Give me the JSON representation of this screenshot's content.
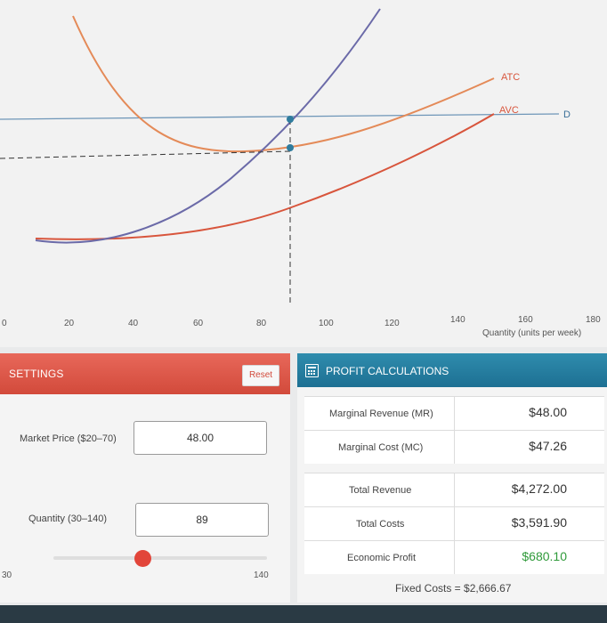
{
  "chart": {
    "x_ticks": [
      "0",
      "20",
      "40",
      "60",
      "80",
      "100",
      "120",
      "140",
      "160",
      "180"
    ],
    "x_axis_label": "Quantity (units per week)",
    "curves": {
      "mc": {
        "label": "",
        "color": "#6b6aa8"
      },
      "atc": {
        "label": "ATC",
        "color": "#e48a58"
      },
      "avc": {
        "label": "AVC",
        "color": "#d8553c"
      },
      "demand": {
        "label": "D",
        "color": "#6e96b8"
      }
    }
  },
  "settings": {
    "title": "SETTINGS",
    "reset_label": "Reset",
    "price_label": "Market Price ($20–70)",
    "price_value": "48.00",
    "quantity_label": "Quantity (30–140)",
    "quantity_value": "89",
    "slider_min_label": "30",
    "slider_max_label": "140",
    "slider_fraction": 0.53,
    "accent_color": "#e2453a"
  },
  "profit": {
    "title": "PROFIT CALCULATIONS",
    "header_color": "#1d7093",
    "marginal": [
      {
        "label": "Marginal Revenue (MR)",
        "value": "$48.00"
      },
      {
        "label": "Marginal Cost (MC)",
        "value": "$47.26"
      }
    ],
    "totals": [
      {
        "label": "Total Revenue",
        "value": "$4,272.00"
      },
      {
        "label": "Total Costs",
        "value": "$3,591.90"
      },
      {
        "label": "Economic Profit",
        "value": "$680.10",
        "color": "#2f9a3a"
      }
    ],
    "fixed_costs": "Fixed Costs = $2,666.67"
  }
}
